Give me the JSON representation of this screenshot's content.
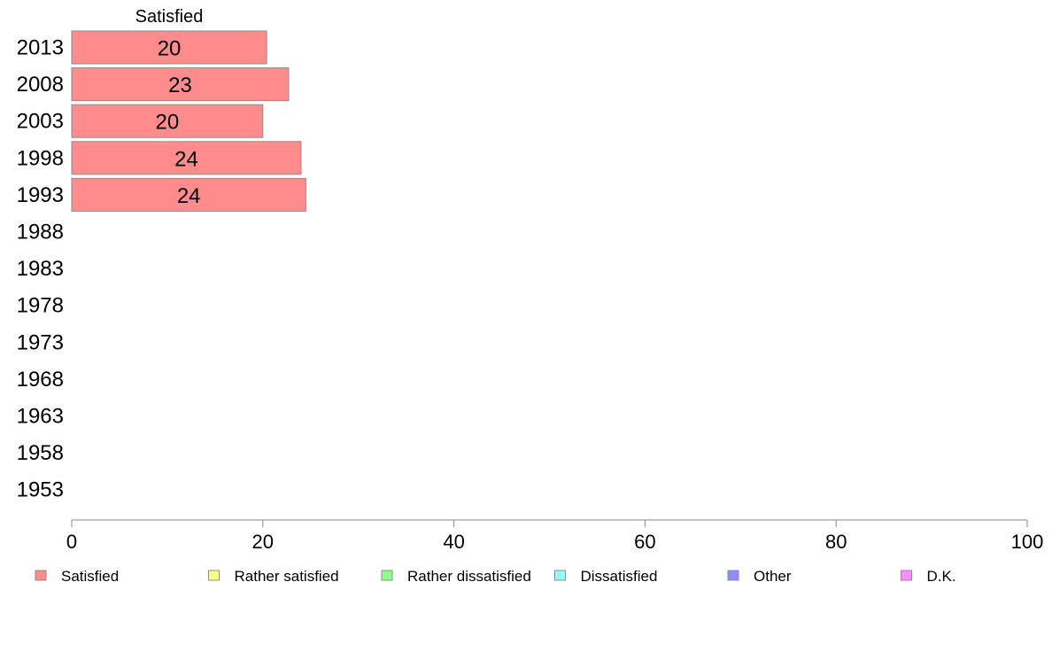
{
  "chart_data": {
    "type": "bar",
    "orientation": "horizontal",
    "stacked": true,
    "title": "",
    "xlabel": "",
    "ylabel": "",
    "xlim": [
      0,
      100
    ],
    "x_ticks": [
      "0",
      "20",
      "40",
      "60",
      "80",
      "100"
    ],
    "categories": [
      "2013",
      "2008",
      "2003",
      "1998",
      "1993",
      "1988",
      "1983",
      "1978",
      "1973",
      "1968",
      "1963",
      "1958",
      "1953"
    ],
    "series": [
      {
        "name": "Satisfied",
        "color": "#ff8c8c",
        "values": [
          20.4,
          22.7,
          20.0,
          24.0,
          24.5,
          null,
          null,
          null,
          null,
          null,
          null,
          null,
          null
        ],
        "labels": [
          "20",
          "23",
          "20",
          "24",
          "24",
          "",
          "",
          "",
          "",
          "",
          "",
          "",
          ""
        ]
      },
      {
        "name": "Rather satisfied",
        "color": "#ffff8c",
        "values": [
          null,
          null,
          null,
          null,
          null,
          null,
          null,
          null,
          null,
          null,
          null,
          null,
          null
        ]
      },
      {
        "name": "Rather dissatisfied",
        "color": "#8cff8c",
        "values": [
          null,
          null,
          null,
          null,
          null,
          null,
          null,
          null,
          null,
          null,
          null,
          null,
          null
        ]
      },
      {
        "name": "Dissatisfied",
        "color": "#8cffff",
        "values": [
          null,
          null,
          null,
          null,
          null,
          null,
          null,
          null,
          null,
          null,
          null,
          null,
          null
        ]
      },
      {
        "name": "Other",
        "color": "#8c8cff",
        "values": [
          null,
          null,
          null,
          null,
          null,
          null,
          null,
          null,
          null,
          null,
          null,
          null,
          null
        ]
      },
      {
        "name": "D.K.",
        "color": "#ff8cff",
        "values": [
          null,
          null,
          null,
          null,
          null,
          null,
          null,
          null,
          null,
          null,
          null,
          null,
          null
        ]
      }
    ],
    "series_header": "Satisfied",
    "legend_position": "bottom",
    "grid": false
  }
}
